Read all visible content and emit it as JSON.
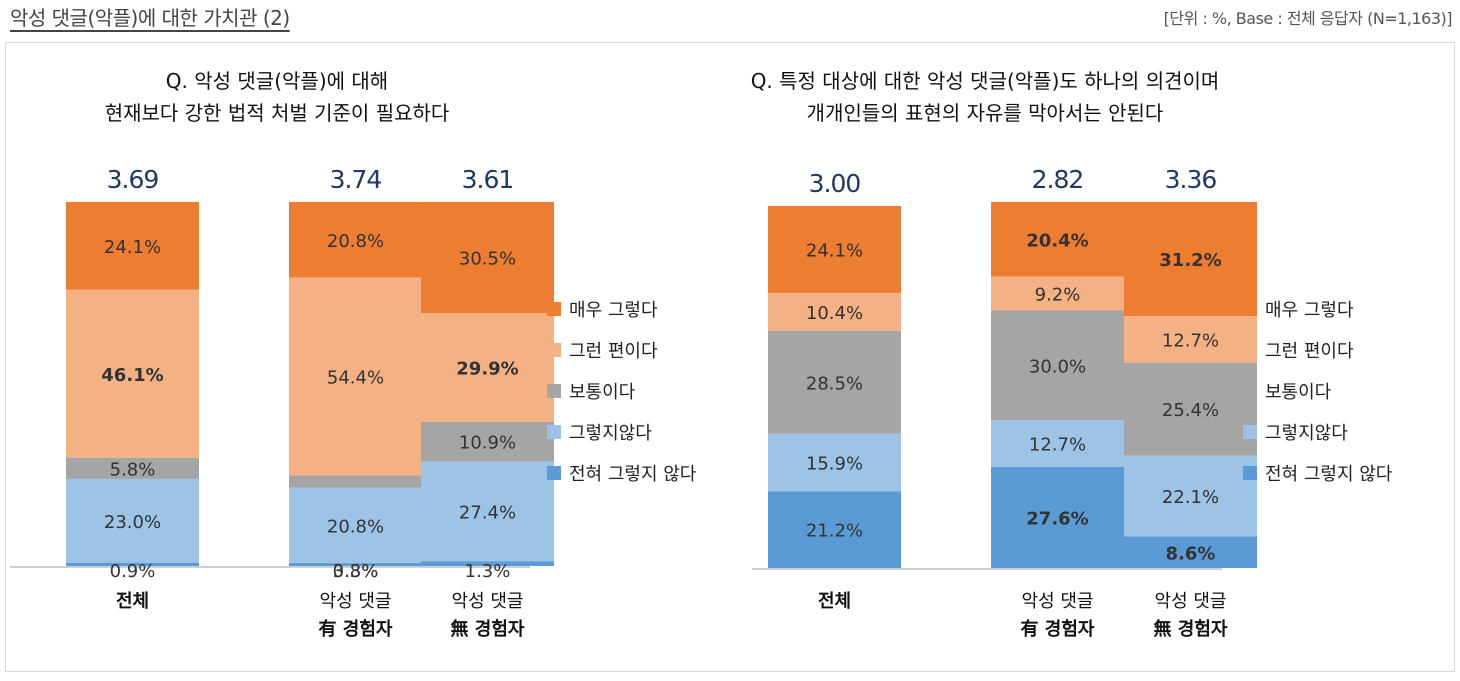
{
  "header": {
    "title": "악성 댓글(악플)에 대한 가치관 (2)",
    "unit_note": "[단위 : %, Base : 전체 응답자 (N=1,163)]"
  },
  "colors": {
    "very_agree": "#ED7D31",
    "agree": "#F4B183",
    "neutral": "#A5A5A5",
    "disagree": "#9DC3E6",
    "strongly_disagree": "#5B9BD5",
    "mean": "#1F3864"
  },
  "chart_data": [
    {
      "type": "bar",
      "stacked": true,
      "title": "Q. 악성 댓글(악플)에 대해\n현재보다 강한 법적 처벌 기준이 필요하다",
      "categories": [
        "전체",
        "악성 댓글\n有 경험자",
        "악성 댓글\n無 경험자"
      ],
      "means": [
        "3.69",
        "3.74",
        "3.61"
      ],
      "series": [
        {
          "name": "매우 그렇다",
          "values": [
            24.1,
            20.8,
            30.5
          ]
        },
        {
          "name": "그런 편이다",
          "values": [
            46.1,
            54.4,
            29.9
          ]
        },
        {
          "name": "보통이다",
          "values": [
            5.8,
            3.3,
            10.9
          ]
        },
        {
          "name": "그렇지않다",
          "values": [
            23.0,
            20.8,
            27.4
          ]
        },
        {
          "name": "전혀 그렇지 않다",
          "values": [
            0.9,
            0.8,
            1.3
          ]
        }
      ],
      "bold_labels": [
        [
          false,
          false,
          false
        ],
        [
          true,
          false,
          true
        ],
        [
          false,
          false,
          false
        ],
        [
          false,
          false,
          false
        ],
        [
          false,
          false,
          false
        ]
      ],
      "ylim": [
        0,
        100
      ]
    },
    {
      "type": "bar",
      "stacked": true,
      "title": "Q. 특정 대상에 대한 악성 댓글(악플)도 하나의 의견이며\n개개인들의 표현의 자유를 막아서는 안된다",
      "categories": [
        "전체",
        "악성 댓글\n有 경험자",
        "악성 댓글\n無 경험자"
      ],
      "means": [
        "3.00",
        "2.82",
        "3.36"
      ],
      "series": [
        {
          "name": "매우 그렇다",
          "values": [
            24.1,
            20.4,
            31.2
          ]
        },
        {
          "name": "그런 편이다",
          "values": [
            10.4,
            9.2,
            12.7
          ]
        },
        {
          "name": "보통이다",
          "values": [
            28.5,
            30.0,
            25.4
          ]
        },
        {
          "name": "그렇지않다",
          "values": [
            15.9,
            12.7,
            22.1
          ]
        },
        {
          "name": "전혀 그렇지 않다",
          "values": [
            21.2,
            27.6,
            8.6
          ]
        }
      ],
      "bold_labels": [
        [
          false,
          true,
          true
        ],
        [
          false,
          false,
          false
        ],
        [
          false,
          false,
          false
        ],
        [
          false,
          false,
          false
        ],
        [
          false,
          true,
          true
        ]
      ],
      "ylim": [
        0,
        100
      ]
    }
  ]
}
